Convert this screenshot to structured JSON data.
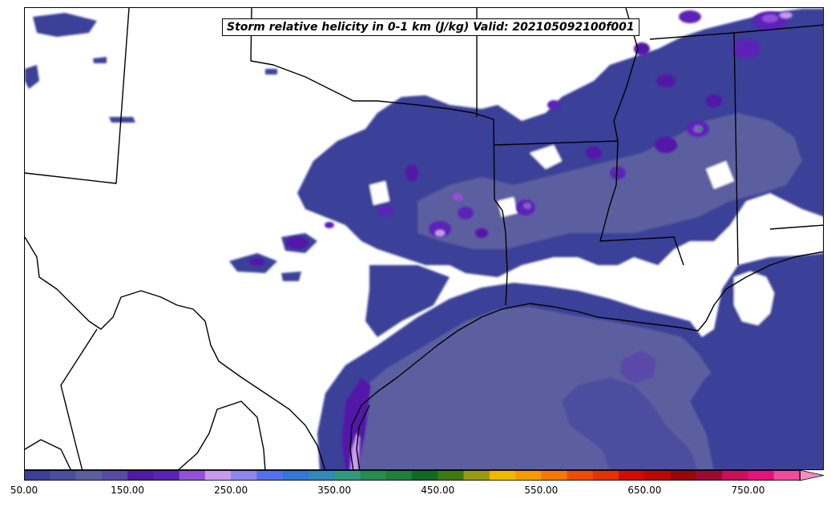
{
  "title": "Storm relative helicity in 0-1 km (J/kg) Valid: 202105092100f001",
  "colorbar": {
    "min": 50,
    "max": 800,
    "step": 25,
    "extend": "max",
    "colors": [
      "#3b3f98",
      "#4b4d9e",
      "#5c5f9f",
      "#5a4aa8",
      "#5218a8",
      "#5c22b8",
      "#9450d8",
      "#c79af0",
      "#8d86ef",
      "#5470ee",
      "#3278dc",
      "#2f89bb",
      "#2f9a7e",
      "#248c50",
      "#1f7e3a",
      "#106a22",
      "#3b7a10",
      "#9a9a12",
      "#f2b800",
      "#f79a00",
      "#f77800",
      "#f04c00",
      "#e83000",
      "#d40b00",
      "#bc0800",
      "#9a0608",
      "#9c0a32",
      "#cc0e5e",
      "#e8107e",
      "#f04c9e",
      "#f58cc2"
    ],
    "ticks": [
      "50.00",
      "150.00",
      "250.00",
      "350.00",
      "450.00",
      "550.00",
      "650.00",
      "750.00"
    ]
  }
}
